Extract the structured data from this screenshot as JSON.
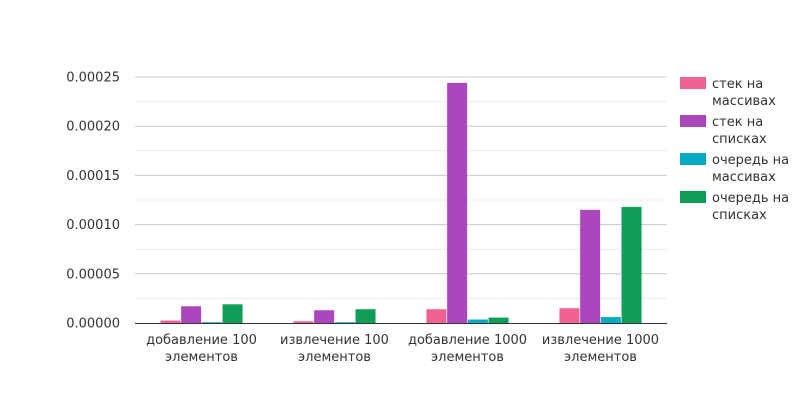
{
  "chart_data": {
    "type": "bar",
    "categories": [
      [
        "добавление 100",
        "элементов"
      ],
      [
        "извлечение 100",
        "элементов"
      ],
      [
        "добавление 1000",
        "элементов"
      ],
      [
        "извлечение 1000",
        "элементов"
      ]
    ],
    "series": [
      {
        "name": [
          "стек на",
          "массивах"
        ],
        "color": "#f06292",
        "values": [
          2.5e-06,
          1.8e-06,
          1.4e-05,
          1.5e-05
        ]
      },
      {
        "name": [
          "стек на",
          "списках"
        ],
        "color": "#ab47bc",
        "values": [
          1.7e-05,
          1.3e-05,
          0.000244,
          0.000115
        ]
      },
      {
        "name": [
          "очередь на",
          "массивах"
        ],
        "color": "#00acc1",
        "values": [
          8e-07,
          8e-07,
          3.5e-06,
          6e-06
        ]
      },
      {
        "name": [
          "очередь на",
          "списках"
        ],
        "color": "#0f9d58",
        "values": [
          1.9e-05,
          1.4e-05,
          5.5e-06,
          0.000118
        ]
      }
    ],
    "y_ticks": [
      "0.00000",
      "0.00005",
      "0.00010",
      "0.00015",
      "0.00020",
      "0.00025"
    ],
    "ylim": [
      0,
      0.00025
    ],
    "grid": true,
    "legend_position": "right"
  }
}
